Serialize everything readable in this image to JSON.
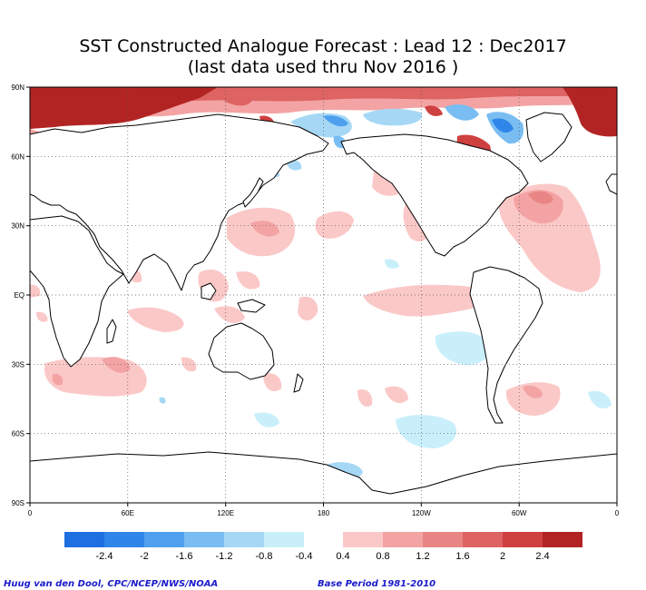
{
  "title_line1": "SST Constructed Analogue Forecast : Lead 12 : Dec2017",
  "title_line2": "(last data used thru Nov 2016 )",
  "lat_labels": [
    "90N",
    "60N",
    "30N",
    "EQ",
    "30S",
    "60S",
    "90S"
  ],
  "lon_labels": [
    "0",
    "60E",
    "120E",
    "180",
    "120W",
    "60W",
    "0"
  ],
  "colorbar": {
    "negative_labels": [
      "-2.4",
      "-2",
      "-1.6",
      "-1.2",
      "-0.8",
      "-0.4"
    ],
    "positive_labels": [
      "0.4",
      "0.8",
      "1.2",
      "1.6",
      "2",
      "2.4"
    ],
    "negative_colors": [
      "#1e6fe0",
      "#2f86e8",
      "#4fa0ee",
      "#79bdf2",
      "#a6d8f6",
      "#c9effb"
    ],
    "positive_colors": [
      "#fbc8c8",
      "#f3a3a3",
      "#e98585",
      "#de6464",
      "#cf4040",
      "#b22424"
    ]
  },
  "credit": "Huug van den Dool, CPC/NCEP/NWS/NOAA",
  "base_period": "Base Period 1981-2010"
}
